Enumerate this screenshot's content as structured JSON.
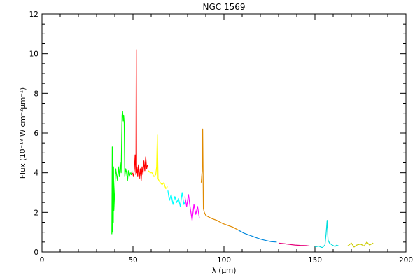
{
  "chart_data": {
    "type": "line",
    "title": "NGC 1569",
    "xlabel": "λ (μm)",
    "ylabel": "Flux (10⁻¹⁸ W cm⁻²μm⁻¹)",
    "xlim": [
      0,
      200
    ],
    "ylim": [
      0,
      12
    ],
    "xticks": [
      0,
      50,
      100,
      150,
      200
    ],
    "yticks": [
      0,
      2,
      4,
      6,
      8,
      10,
      12
    ],
    "xtick_labels": [
      "0",
      "50",
      "100",
      "150",
      "200"
    ],
    "ytick_labels": [
      "0",
      "2",
      "4",
      "6",
      "8",
      "10",
      "12"
    ],
    "grid": false,
    "series": [
      {
        "color": "#00ff00",
        "x": [
          38.4,
          38.6,
          38.8,
          39.0,
          39.2,
          39.3,
          39.5,
          40.5,
          41.5,
          42.0,
          42.5,
          43.0,
          43.5,
          44.0,
          44.3,
          44.6,
          44.9,
          45.2,
          45.5,
          46.0,
          46.5,
          47.0,
          47.5,
          48.0,
          48.5,
          49.0,
          49.5
        ],
        "y": [
          0.9,
          5.3,
          1.0,
          3.5,
          1.5,
          4.3,
          2.1,
          4.2,
          3.6,
          4.3,
          3.8,
          4.5,
          4.0,
          6.9,
          7.1,
          6.6,
          6.9,
          6.5,
          3.8,
          4.2,
          4.0,
          3.6,
          4.1,
          3.8,
          4.0,
          3.9,
          4.1
        ]
      },
      {
        "color": "#ff0000",
        "x": [
          49.8,
          50.3,
          50.8,
          51.2,
          51.6,
          51.8,
          52.0,
          52.2,
          52.6,
          53.0,
          53.5,
          54.0,
          54.5,
          55.0,
          55.5,
          56.0,
          56.5,
          57.0,
          57.5,
          58.0
        ],
        "y": [
          4.0,
          3.8,
          4.2,
          4.9,
          3.9,
          10.2,
          4.0,
          4.3,
          3.8,
          4.4,
          3.7,
          4.2,
          3.6,
          4.3,
          3.9,
          4.6,
          4.1,
          4.8,
          4.2,
          4.4
        ]
      },
      {
        "color": "#ffff00",
        "x": [
          58.5,
          59.5,
          60.5,
          61.5,
          62.5,
          63.0,
          63.4,
          63.8,
          64.3,
          65.0,
          66.0,
          67.0,
          68.0,
          69.0
        ],
        "y": [
          4.1,
          4.0,
          4.0,
          3.8,
          3.9,
          4.3,
          5.9,
          3.7,
          3.6,
          3.5,
          3.4,
          3.5,
          3.2,
          3.3
        ]
      },
      {
        "color": "#00ffff",
        "x": [
          69.2,
          70.0,
          71.0,
          72.0,
          73.0,
          74.0,
          75.0,
          76.0,
          77.0,
          78.0,
          79.0
        ],
        "y": [
          3.1,
          2.6,
          2.9,
          2.4,
          2.8,
          2.5,
          2.7,
          2.3,
          3.0,
          2.4,
          2.6
        ]
      },
      {
        "color": "#ff00ff",
        "x": [
          78.5,
          79.5,
          80.5,
          81.5,
          82.5,
          83.5,
          84.5,
          85.5,
          86.5
        ],
        "y": [
          2.8,
          2.3,
          2.9,
          2.2,
          1.6,
          2.4,
          1.9,
          2.3,
          1.7
        ]
      },
      {
        "color": "#e08a00",
        "x": [
          87.5,
          88.0,
          88.3,
          88.7,
          89.2,
          90.0,
          93.0,
          96.0,
          99.0,
          102.0,
          105.0,
          108.0
        ],
        "y": [
          3.5,
          4.1,
          6.2,
          2.2,
          2.0,
          1.85,
          1.7,
          1.6,
          1.45,
          1.35,
          1.25,
          1.1
        ]
      },
      {
        "color": "#0088dd",
        "x": [
          108.0,
          111.0,
          114.0,
          117.0,
          120.0,
          123.0,
          126.0,
          129.0
        ],
        "y": [
          1.1,
          0.95,
          0.85,
          0.75,
          0.65,
          0.58,
          0.52,
          0.5
        ]
      },
      {
        "color": "#e6007a",
        "x": [
          130.0,
          133.0,
          136.0,
          139.0,
          142.0,
          145.0,
          147.0
        ],
        "y": [
          0.45,
          0.42,
          0.38,
          0.35,
          0.33,
          0.32,
          0.3
        ]
      },
      {
        "color": "#00dddd",
        "x": [
          150.0,
          152.0,
          154.0,
          155.5,
          156.2,
          156.7,
          157.2,
          158.0,
          159.5,
          161.0,
          162.0,
          163.0
        ],
        "y": [
          0.25,
          0.3,
          0.22,
          0.35,
          1.0,
          1.6,
          0.6,
          0.45,
          0.35,
          0.28,
          0.35,
          0.3
        ]
      },
      {
        "color": "#cccc00",
        "x": [
          168.0,
          170.0,
          171.5,
          173.0,
          175.0,
          177.0,
          178.5,
          180.0,
          182.0
        ],
        "y": [
          0.3,
          0.45,
          0.25,
          0.35,
          0.4,
          0.3,
          0.5,
          0.35,
          0.45
        ]
      }
    ]
  }
}
